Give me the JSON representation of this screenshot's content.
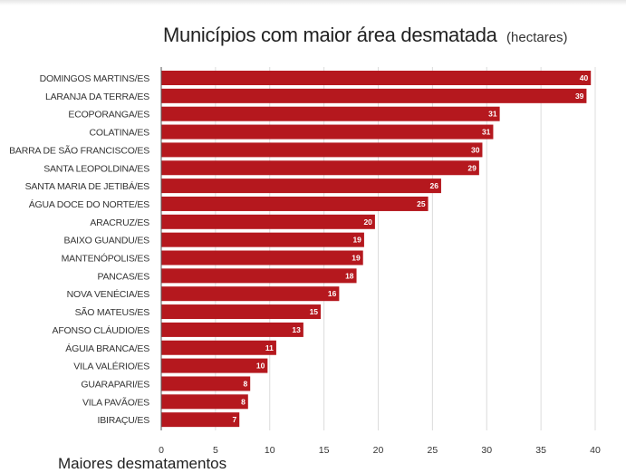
{
  "header": {
    "title": "Municípios com maior área desmatada",
    "subtitle": "(hectares)"
  },
  "footer": {
    "text": "Maiores desmatamentos"
  },
  "chart_data": {
    "type": "bar",
    "orientation": "horizontal",
    "title": "Municípios com maior área desmatada",
    "subtitle": "(hectares)",
    "categories": [
      "DOMINGOS MARTINS/ES",
      "LARANJA DA TERRA/ES",
      "ECOPORANGA/ES",
      "COLATINA/ES",
      "BARRA DE SÃO FRANCISCO/ES",
      "SANTA LEOPOLDINA/ES",
      "SANTA MARIA DE JETIBÁ/ES",
      "ÁGUA DOCE DO NORTE/ES",
      "ARACRUZ/ES",
      "BAIXO GUANDU/ES",
      "MANTENÓPOLIS/ES",
      "PANCAS/ES",
      "NOVA VENÉCIA/ES",
      "SÃO MATEUS/ES",
      "AFONSO CLÁUDIO/ES",
      "ÁGUIA BRANCA/ES",
      "VILA VALÉRIO/ES",
      "GUARAPARI/ES",
      "VILA PAVÃO/ES",
      "IBIRAÇU/ES"
    ],
    "values": [
      39.6,
      39.2,
      31.2,
      30.6,
      29.6,
      29.3,
      25.8,
      24.6,
      19.7,
      18.7,
      18.6,
      18.0,
      16.4,
      14.7,
      13.1,
      10.6,
      9.8,
      8.2,
      8.0,
      7.2
    ],
    "value_labels": [
      "40",
      "39",
      "31",
      "31",
      "30",
      "29",
      "26",
      "25",
      "20",
      "19",
      "19",
      "18",
      "16",
      "15",
      "13",
      "11",
      "10",
      "8",
      "8",
      "7"
    ],
    "xlim": [
      0,
      40
    ],
    "xticks": [
      0,
      5,
      10,
      15,
      20,
      25,
      30,
      35,
      40
    ],
    "grid": true,
    "bar_color": "#b5181e",
    "grid_color": "#dcdcdc"
  }
}
